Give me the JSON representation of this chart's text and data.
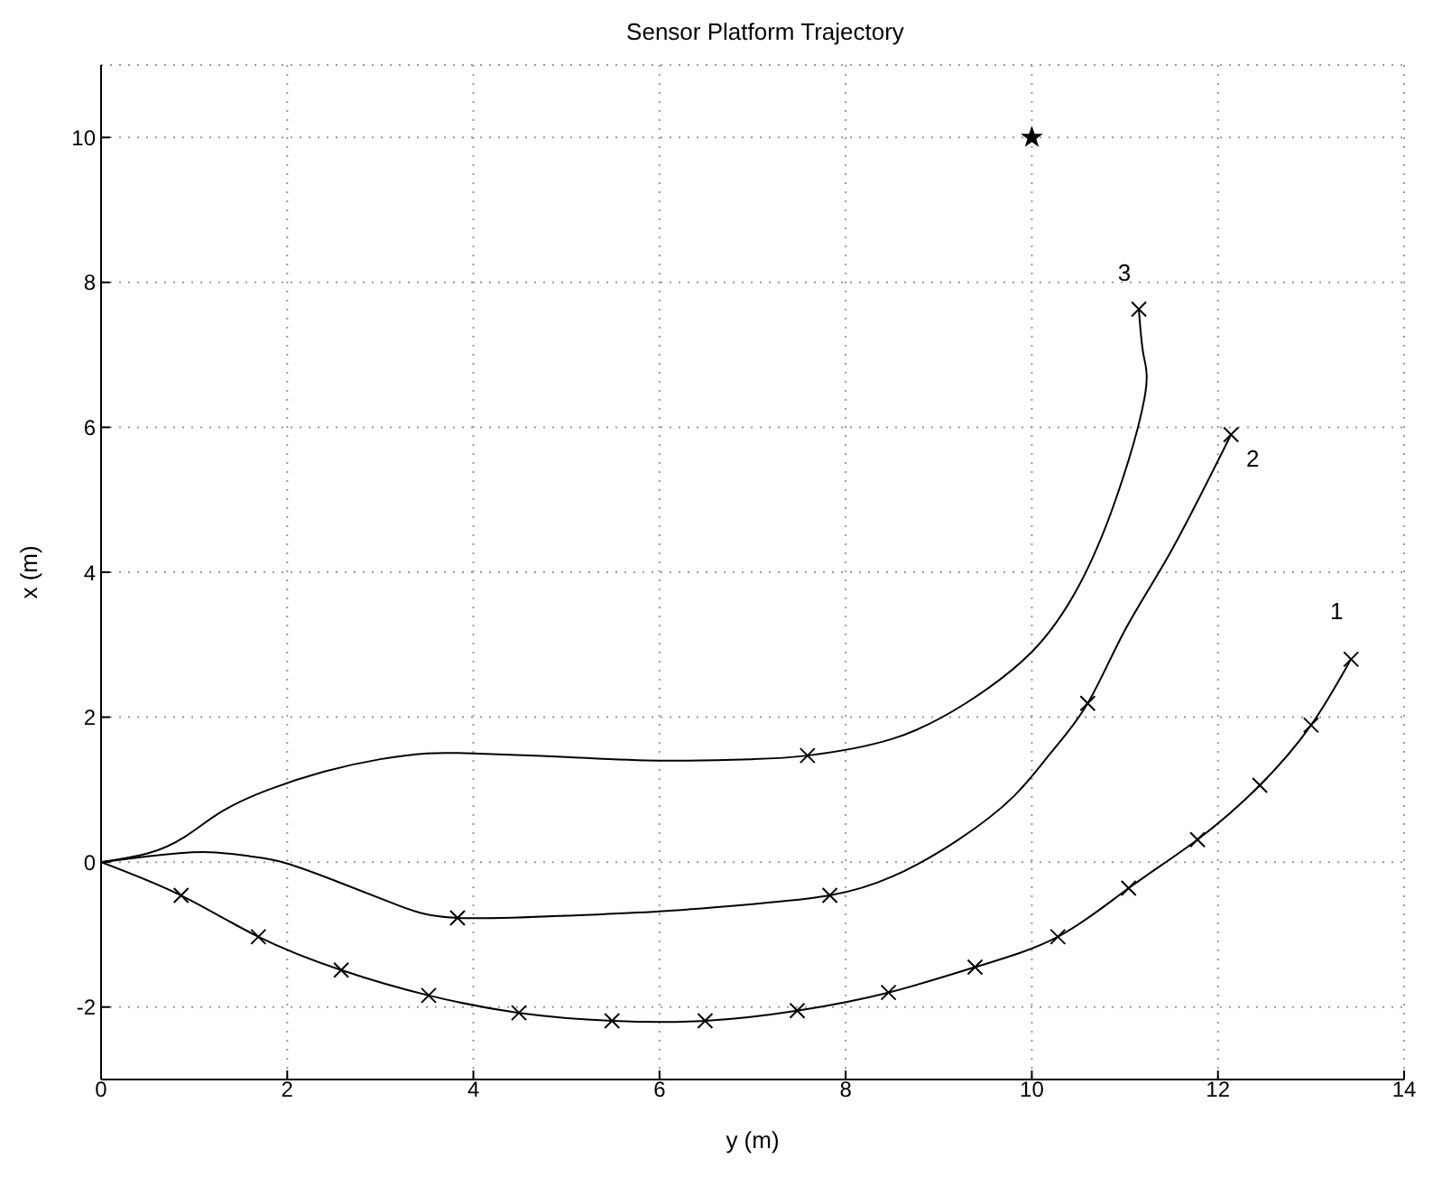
{
  "chart_data": {
    "type": "line",
    "title": "Sensor Platform Trajectory",
    "xlabel": "y (m)",
    "ylabel": "x (m)",
    "xlim": [
      0,
      14
    ],
    "xticks": [
      0,
      2,
      4,
      6,
      8,
      10,
      12,
      14
    ],
    "ylim": [
      -3,
      11
    ],
    "yticks": [
      -2,
      0,
      2,
      4,
      6,
      8,
      10
    ],
    "grid": true,
    "series": [
      {
        "name": "1",
        "marker": "none",
        "color": "#000000",
        "x": [
          0,
          0.86,
          1.69,
          2.58,
          3.52,
          4.49,
          5.49,
          6.49,
          7.48,
          8.46,
          9.39,
          10.28,
          11.04,
          11.78,
          12.45,
          13.0,
          13.43
        ],
        "values": [
          0,
          -0.46,
          -1.03,
          -1.49,
          -1.84,
          -2.08,
          -2.19,
          -2.19,
          -2.05,
          -1.8,
          -1.45,
          -1.03,
          -0.36,
          0.31,
          1.06,
          1.89,
          2.8
        ]
      },
      {
        "name": "2",
        "marker": "none",
        "color": "#000000",
        "x": [
          0,
          0.5,
          1.1,
          1.6,
          2.0,
          2.6,
          3.2,
          3.83,
          5,
          6,
          7,
          7.83,
          8.5,
          9.2,
          9.8,
          10.2,
          10.6,
          11.0,
          11.5,
          12.14
        ],
        "values": [
          0,
          0.08,
          0.14,
          0.08,
          -0.02,
          -0.3,
          -0.6,
          -0.77,
          -0.74,
          -0.68,
          -0.58,
          -0.46,
          -0.2,
          0.3,
          0.9,
          1.5,
          2.19,
          3.2,
          4.3,
          5.9
        ]
      },
      {
        "name": "3",
        "marker": "none",
        "color": "#000000",
        "x": [
          0,
          0.5,
          0.9,
          1.3,
          1.8,
          2.4,
          3,
          3.5,
          4,
          5,
          6,
          7,
          7.59,
          8.5,
          9.3,
          10,
          10.5,
          10.9,
          11.21,
          11.2,
          11.15
        ],
        "values": [
          0,
          0.12,
          0.35,
          0.7,
          1.0,
          1.25,
          1.42,
          1.5,
          1.5,
          1.45,
          1.4,
          1.42,
          1.47,
          1.7,
          2.2,
          2.9,
          3.8,
          5.0,
          6.4,
          7.0,
          7.63
        ]
      },
      {
        "type": "scatter",
        "marker": "cross",
        "color": "#000000",
        "x": [
          0.86,
          1.69,
          2.58,
          3.52,
          4.49,
          5.49,
          6.49,
          7.48,
          8.46,
          9.39,
          10.28,
          11.04,
          11.78,
          12.45,
          13.0,
          13.43,
          3.83,
          7.83,
          10.6,
          12.14,
          7.59,
          11.15
        ],
        "values": [
          -0.46,
          -1.03,
          -1.49,
          -1.84,
          -2.08,
          -2.19,
          -2.19,
          -2.05,
          -1.8,
          -1.45,
          -1.03,
          -0.36,
          0.31,
          1.06,
          1.89,
          2.8,
          -0.77,
          -0.46,
          2.19,
          5.9,
          1.47,
          7.63
        ]
      },
      {
        "type": "scatter",
        "marker": "star",
        "color": "#000000",
        "x": [
          10
        ],
        "values": [
          10
        ]
      }
    ]
  }
}
